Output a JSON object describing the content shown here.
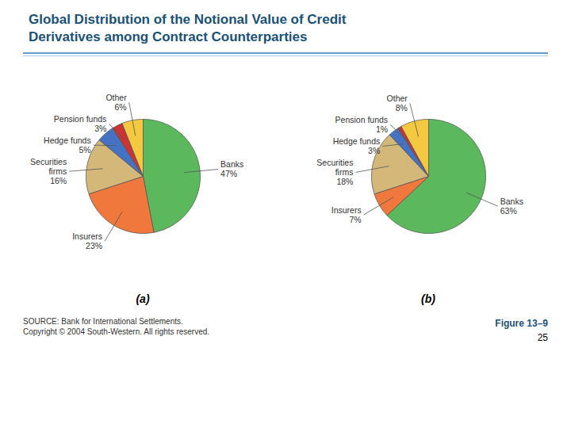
{
  "title": "Global Distribution of the Notional Value of Credit\nDerivatives among Contract Counterparties",
  "caption": "SOURCE: Bank for International Settlements.\nCopyright © 2004 South-Western.  All rights reserved.",
  "annotations": [
    "Figure 13–9",
    "25"
  ],
  "chart_data": [
    {
      "type": "pie",
      "title": "(a)",
      "categories": [
        "Banks",
        "Insurers",
        "Securities\nfirms",
        "Hedge funds",
        "Pension funds",
        "Other"
      ],
      "values": [
        47,
        23,
        16,
        5,
        3,
        6
      ],
      "value_labels": [
        "47%",
        "23%",
        "16%",
        "5%",
        "3%",
        "6%"
      ],
      "colors": [
        "#5cb85c",
        "#f0783c",
        "#d4b87a",
        "#4472c4",
        "#cc3333",
        "#f5c842"
      ],
      "data_labels": true
    },
    {
      "type": "pie",
      "title": "(b)",
      "categories": [
        "Banks",
        "Insurers",
        "Securities\nfirms",
        "Hedge funds",
        "Pension funds",
        "Other"
      ],
      "values": [
        63,
        7,
        18,
        3,
        1,
        8
      ],
      "value_labels": [
        "63%",
        "7%",
        "18%",
        "3%",
        "1%",
        "8%"
      ],
      "colors": [
        "#5cb85c",
        "#f0783c",
        "#d4b87a",
        "#4472c4",
        "#cc3333",
        "#f5c842"
      ],
      "data_labels": true
    }
  ]
}
